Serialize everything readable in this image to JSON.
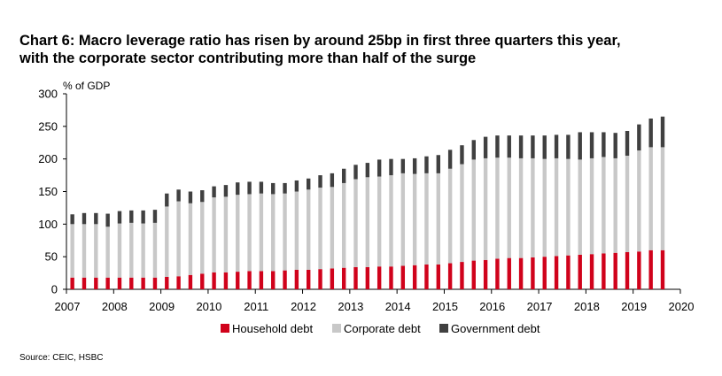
{
  "title": {
    "line1": "Chart 6: Macro leverage ratio has risen by around 25bp in first three quarters this year,",
    "line2": "with the corporate sector contributing more than half of the surge"
  },
  "source": "Source: CEIC, HSBC",
  "chart_data": {
    "type": "bar",
    "stacked": true,
    "ylabel": "% of GDP",
    "ylim": [
      0,
      300
    ],
    "yticks": [
      0,
      50,
      100,
      150,
      200,
      250,
      300
    ],
    "grid": false,
    "legend_position": "bottom",
    "x_tick_labels": [
      "2007",
      "2008",
      "2009",
      "2010",
      "2011",
      "2012",
      "2013",
      "2014",
      "2015",
      "2016",
      "2017",
      "2018",
      "2019",
      "2020"
    ],
    "periods_per_year": 4,
    "start_period": "2007Q1",
    "series": [
      {
        "name": "Household debt",
        "color": "#d0021b",
        "values": [
          18,
          18,
          18,
          18,
          18,
          18,
          18,
          18,
          19,
          20,
          22,
          24,
          26,
          26,
          27,
          28,
          28,
          28,
          29,
          30,
          30,
          31,
          32,
          33,
          34,
          34,
          35,
          35,
          36,
          37,
          38,
          38,
          40,
          42,
          44,
          45,
          47,
          48,
          48,
          49,
          50,
          51,
          52,
          53,
          54,
          55,
          56,
          57,
          58,
          60,
          60
        ]
      },
      {
        "name": "Corporate debt",
        "color": "#c8c8c8",
        "values": [
          82,
          82,
          82,
          78,
          83,
          84,
          83,
          84,
          108,
          115,
          110,
          110,
          115,
          116,
          118,
          118,
          119,
          118,
          118,
          120,
          123,
          125,
          125,
          130,
          135,
          138,
          138,
          140,
          142,
          140,
          140,
          140,
          145,
          150,
          155,
          156,
          155,
          154,
          153,
          152,
          150,
          150,
          148,
          146,
          147,
          148,
          145,
          148,
          155,
          158,
          158
        ]
      },
      {
        "name": "Government debt",
        "color": "#404040",
        "values": [
          15,
          17,
          17,
          20,
          19,
          19,
          20,
          20,
          20,
          18,
          18,
          18,
          17,
          18,
          19,
          19,
          18,
          17,
          16,
          17,
          17,
          19,
          21,
          22,
          22,
          22,
          26,
          25,
          22,
          24,
          26,
          28,
          29,
          29,
          30,
          33,
          34,
          34,
          35,
          35,
          36,
          36,
          37,
          42,
          40,
          38,
          39,
          38,
          40,
          44,
          47
        ]
      }
    ]
  }
}
